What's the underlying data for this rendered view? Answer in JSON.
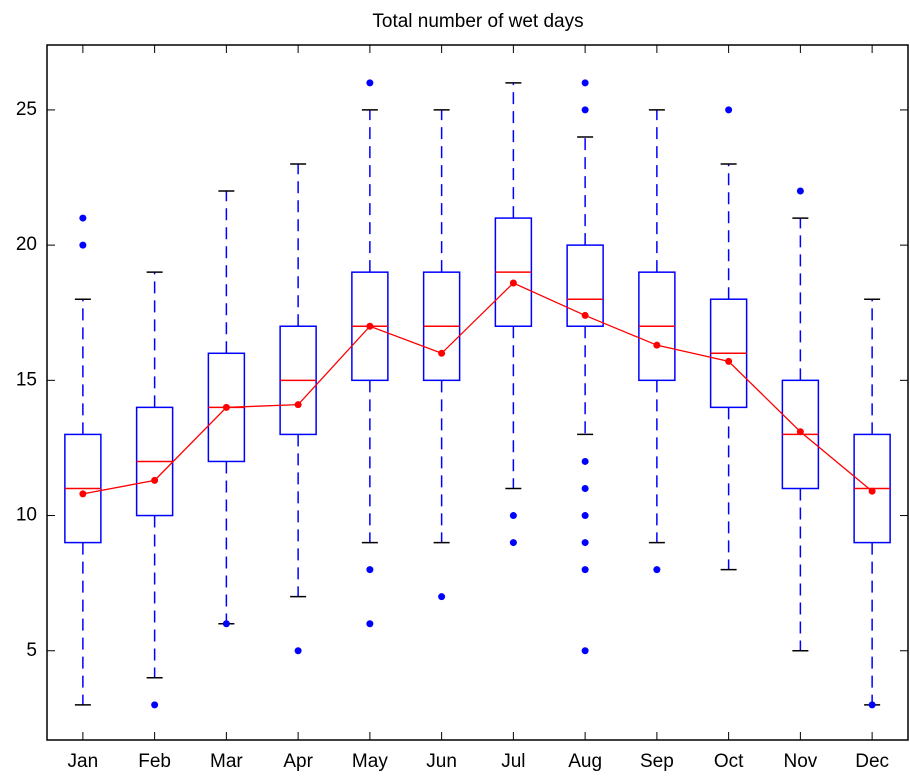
{
  "chart_data": {
    "type": "box",
    "title": "Total number of wet days",
    "categories": [
      "Jan",
      "Feb",
      "Mar",
      "Apr",
      "May",
      "Jun",
      "Jul",
      "Aug",
      "Sep",
      "Oct",
      "Nov",
      "Dec"
    ],
    "min": [
      3,
      4,
      6,
      7,
      9,
      9,
      11,
      13,
      9,
      8,
      5,
      3
    ],
    "q1": [
      9,
      10,
      12,
      13,
      15,
      15,
      17,
      17,
      15,
      14,
      11,
      9
    ],
    "median": [
      11,
      12,
      14,
      15,
      17,
      17,
      19,
      18,
      17,
      16,
      13,
      11
    ],
    "q3": [
      13,
      14,
      16,
      17,
      19,
      19,
      21,
      20,
      19,
      18,
      15,
      13
    ],
    "max": [
      18,
      19,
      22,
      23,
      25,
      25,
      26,
      24,
      25,
      23,
      21,
      18
    ],
    "outliers": [
      [
        20,
        21
      ],
      [
        3
      ],
      [
        6
      ],
      [
        5
      ],
      [
        26,
        8,
        6
      ],
      [
        7
      ],
      [
        10,
        9
      ],
      [
        26,
        25,
        12,
        11,
        10,
        9,
        8,
        5
      ],
      [
        8
      ],
      [
        25
      ],
      [
        22
      ],
      [
        3
      ]
    ],
    "mean": [
      10.8,
      11.3,
      14,
      14.1,
      17,
      16,
      18.6,
      17.4,
      16.3,
      15.7,
      13.1,
      10.9
    ],
    "box_color": "#0000ff",
    "median_color": "#ff0000",
    "mean_color": "#ff0000",
    "cap_color": "#000000",
    "ylim": [
      1.7,
      27.4
    ],
    "yticks": [
      5,
      10,
      15,
      20,
      25
    ]
  }
}
